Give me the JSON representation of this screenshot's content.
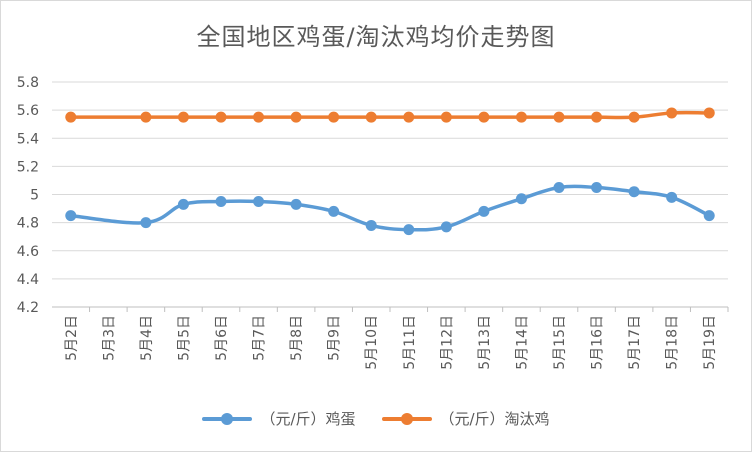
{
  "chart_data": {
    "type": "line",
    "title": "全国地区鸡蛋/淘汰鸡均价走势图",
    "categories": [
      "5月2日",
      "5月3日",
      "5月4日",
      "5月5日",
      "5月6日",
      "5月7日",
      "5月8日",
      "5月9日",
      "5月10日",
      "5月11日",
      "5月12日",
      "5月13日",
      "5月14日",
      "5月15日",
      "5月16日",
      "5月17日",
      "5月18日",
      "5月19日"
    ],
    "series": [
      {
        "name": "（元/斤）鸡蛋",
        "color": "#5b9bd5",
        "values": [
          4.85,
          null,
          4.8,
          4.93,
          4.95,
          4.95,
          4.93,
          4.88,
          4.78,
          4.75,
          4.77,
          4.88,
          4.97,
          5.05,
          5.05,
          5.02,
          4.98,
          4.85
        ]
      },
      {
        "name": "（元/斤）淘汰鸡",
        "color": "#ed7d31",
        "values": [
          5.55,
          null,
          5.55,
          5.55,
          5.55,
          5.55,
          5.55,
          5.55,
          5.55,
          5.55,
          5.55,
          5.55,
          5.55,
          5.55,
          5.55,
          5.55,
          5.58,
          5.58
        ]
      }
    ],
    "yticks": [
      "4.2",
      "4.4",
      "4.6",
      "4.8",
      "5",
      "5.2",
      "5.4",
      "5.6",
      "5.8"
    ],
    "ylim": [
      4.2,
      5.8
    ],
    "grid": true,
    "legend_position": "bottom"
  }
}
